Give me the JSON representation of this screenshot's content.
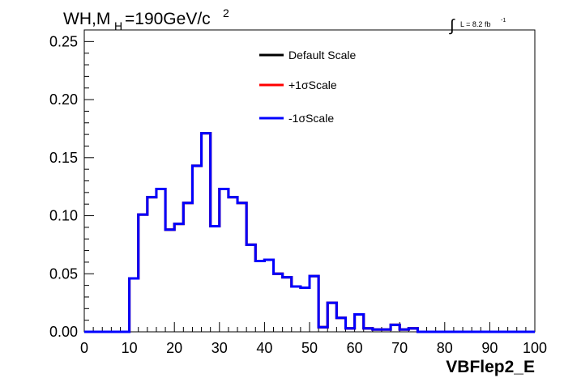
{
  "chart_data": {
    "type": "line",
    "title_parts": {
      "main": "WH,M",
      "sub": "H",
      "rest": "=190GeV/c",
      "sup": "2"
    },
    "lumi_parts": {
      "integral": "∫",
      "label": "L = 8.2 fb",
      "sup": "-1"
    },
    "xlabel": "VBFlep2_E",
    "ylabel": "",
    "xlim": [
      0,
      100
    ],
    "ylim": [
      0,
      0.26
    ],
    "x_ticks": [
      "0",
      "10",
      "20",
      "30",
      "40",
      "50",
      "60",
      "70",
      "80",
      "90",
      "100"
    ],
    "y_ticks": [
      "0.00",
      "0.05",
      "0.10",
      "0.15",
      "0.20",
      "0.25"
    ],
    "grid": false,
    "legend_position": "top-center",
    "bin_width": 2,
    "bin_edges_start": 0,
    "series": [
      {
        "name": "Default Scale",
        "color": "#000000"
      },
      {
        "name": "+1σScale",
        "color": "#ff0000"
      },
      {
        "name": "-1σScale",
        "color": "#0000ff"
      }
    ],
    "values": [
      0,
      0,
      0,
      0,
      0,
      0.046,
      0.101,
      0.116,
      0.123,
      0.088,
      0.093,
      0.111,
      0.143,
      0.171,
      0.091,
      0.123,
      0.116,
      0.111,
      0.075,
      0.061,
      0.062,
      0.05,
      0.047,
      0.039,
      0.038,
      0.048,
      0.004,
      0.025,
      0.012,
      0.003,
      0.015,
      0.003,
      0.002,
      0.002,
      0.006,
      0.002,
      0.003,
      0,
      0,
      0,
      0,
      0,
      0,
      0,
      0,
      0,
      0,
      0,
      0,
      0
    ]
  }
}
